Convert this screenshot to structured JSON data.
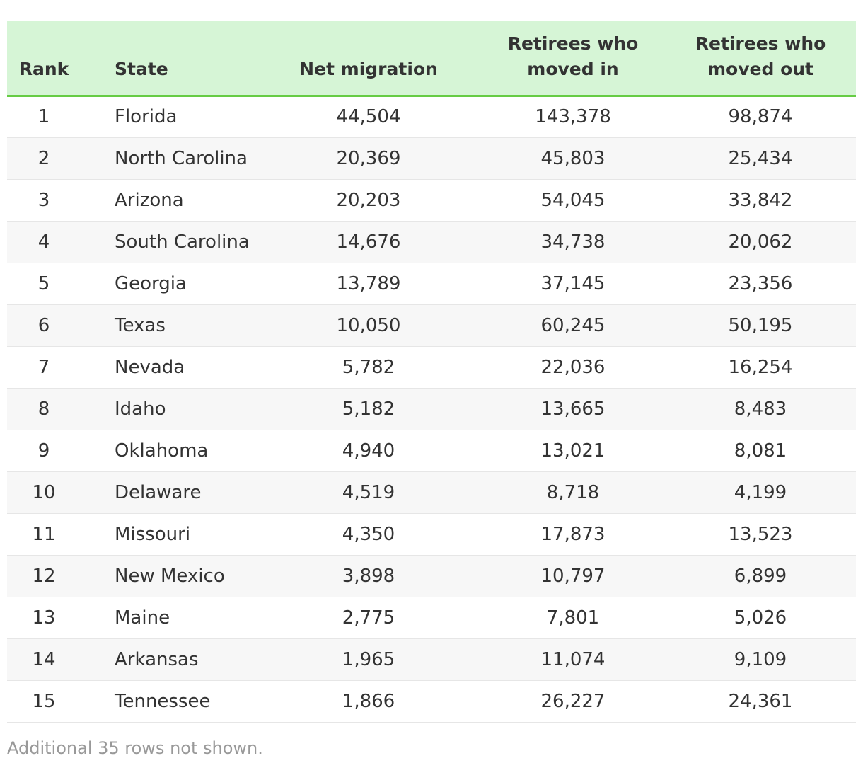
{
  "table": {
    "headers": {
      "rank": "Rank",
      "state": "State",
      "net": "Net migration",
      "moved_in": "Retirees who moved in",
      "moved_out": "Retirees who moved out"
    },
    "rows": [
      {
        "rank": "1",
        "state": "Florida",
        "net": "44,504",
        "moved_in": "143,378",
        "moved_out": "98,874"
      },
      {
        "rank": "2",
        "state": "North Carolina",
        "net": "20,369",
        "moved_in": "45,803",
        "moved_out": "25,434"
      },
      {
        "rank": "3",
        "state": "Arizona",
        "net": "20,203",
        "moved_in": "54,045",
        "moved_out": "33,842"
      },
      {
        "rank": "4",
        "state": "South Carolina",
        "net": "14,676",
        "moved_in": "34,738",
        "moved_out": "20,062"
      },
      {
        "rank": "5",
        "state": "Georgia",
        "net": "13,789",
        "moved_in": "37,145",
        "moved_out": "23,356"
      },
      {
        "rank": "6",
        "state": "Texas",
        "net": "10,050",
        "moved_in": "60,245",
        "moved_out": "50,195"
      },
      {
        "rank": "7",
        "state": "Nevada",
        "net": "5,782",
        "moved_in": "22,036",
        "moved_out": "16,254"
      },
      {
        "rank": "8",
        "state": "Idaho",
        "net": "5,182",
        "moved_in": "13,665",
        "moved_out": "8,483"
      },
      {
        "rank": "9",
        "state": "Oklahoma",
        "net": "4,940",
        "moved_in": "13,021",
        "moved_out": "8,081"
      },
      {
        "rank": "10",
        "state": "Delaware",
        "net": "4,519",
        "moved_in": "8,718",
        "moved_out": "4,199"
      },
      {
        "rank": "11",
        "state": "Missouri",
        "net": "4,350",
        "moved_in": "17,873",
        "moved_out": "13,523"
      },
      {
        "rank": "12",
        "state": "New Mexico",
        "net": "3,898",
        "moved_in": "10,797",
        "moved_out": "6,899"
      },
      {
        "rank": "13",
        "state": "Maine",
        "net": "2,775",
        "moved_in": "7,801",
        "moved_out": "5,026"
      },
      {
        "rank": "14",
        "state": "Arkansas",
        "net": "1,965",
        "moved_in": "11,074",
        "moved_out": "9,109"
      },
      {
        "rank": "15",
        "state": "Tennessee",
        "net": "1,866",
        "moved_in": "26,227",
        "moved_out": "24,361"
      }
    ]
  },
  "footer_note": "Additional 35 rows not shown.",
  "colors": {
    "header_bg": "#d6f5d6",
    "header_border": "#66cc44",
    "stripe": "#f7f7f7",
    "note_text": "#999999"
  }
}
